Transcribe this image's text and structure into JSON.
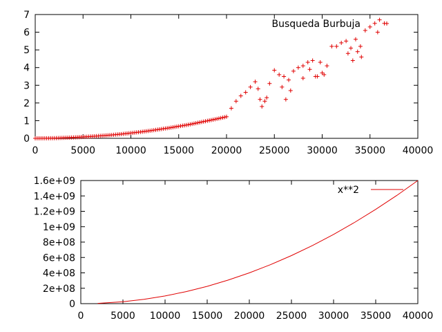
{
  "chart_data": [
    {
      "type": "scatter",
      "title": "",
      "xlabel": "",
      "ylabel": "",
      "legend_position": "top-right",
      "grid": false,
      "xlim": [
        0,
        40000
      ],
      "ylim": [
        0,
        7
      ],
      "x_ticks": [
        0,
        5000,
        10000,
        15000,
        20000,
        25000,
        30000,
        35000,
        40000
      ],
      "y_ticks": [
        0,
        1,
        2,
        3,
        4,
        5,
        6,
        7
      ],
      "x_tick_labels": [
        "0",
        "5000",
        "10000",
        "15000",
        "20000",
        "25000",
        "30000",
        "35000",
        "40000"
      ],
      "y_tick_labels": [
        "0",
        "1",
        "2",
        "3",
        "4",
        "5",
        "6",
        "7"
      ],
      "series": [
        {
          "name": "Busqueda Burbuja",
          "color": "#e00000",
          "marker": "plus",
          "x": [
            0,
            1000,
            2000,
            3000,
            4000,
            5000,
            6000,
            7000,
            8000,
            9000,
            10000,
            11000,
            12000,
            13000,
            14000,
            15000,
            16000,
            17000,
            18000,
            19000,
            20000,
            20500,
            21000,
            21500,
            22000,
            22500,
            23000,
            23500,
            24000,
            24500,
            25000,
            25500,
            26000,
            26500,
            27000,
            27500,
            28000,
            28500,
            29000,
            29500,
            30000,
            30500,
            31000,
            31500,
            32000,
            32500,
            33000,
            33500,
            34000,
            34500,
            35000,
            35500,
            36000,
            36500,
            23300,
            23700,
            24200,
            25800,
            26200,
            26700,
            28000,
            28700,
            29300,
            29800,
            30200,
            32700,
            33200,
            33700,
            34100,
            35800
          ],
          "y": [
            0.0,
            0.003,
            0.01,
            0.03,
            0.05,
            0.08,
            0.11,
            0.15,
            0.19,
            0.24,
            0.3,
            0.36,
            0.43,
            0.51,
            0.59,
            0.68,
            0.77,
            0.88,
            0.99,
            1.1,
            1.22,
            1.7,
            2.1,
            2.4,
            2.6,
            2.9,
            3.2,
            2.2,
            2.1,
            3.1,
            3.85,
            3.6,
            3.5,
            3.3,
            3.8,
            4.0,
            4.1,
            4.3,
            4.4,
            3.5,
            3.7,
            4.1,
            5.2,
            5.2,
            5.4,
            5.5,
            5.1,
            5.6,
            5.2,
            6.1,
            6.3,
            6.5,
            6.7,
            6.5,
            2.8,
            1.8,
            2.3,
            2.9,
            2.2,
            2.7,
            3.4,
            3.9,
            3.5,
            4.3,
            3.6,
            4.8,
            4.4,
            4.9,
            4.6,
            6.0
          ]
        }
      ]
    },
    {
      "type": "line",
      "title": "",
      "xlabel": "",
      "ylabel": "",
      "legend_position": "top-right",
      "grid": false,
      "xlim": [
        0,
        40000
      ],
      "ylim": [
        0,
        1600000000
      ],
      "x_ticks": [
        0,
        5000,
        10000,
        15000,
        20000,
        25000,
        30000,
        35000,
        40000
      ],
      "y_ticks": [
        0,
        200000000,
        400000000,
        600000000,
        800000000,
        1000000000,
        1200000000,
        1400000000,
        1600000000
      ],
      "x_tick_labels": [
        "0",
        "5000",
        "10000",
        "15000",
        "20000",
        "25000",
        "30000",
        "35000",
        "40000"
      ],
      "y_tick_labels": [
        "0",
        "2e+08",
        "4e+08",
        "6e+08",
        "8e+08",
        "1e+09",
        "1.2e+09",
        "1.4e+09",
        "1.6e+09"
      ],
      "series": [
        {
          "name": "x**2",
          "color": "#e00000",
          "x": [
            2000,
            5000,
            7500,
            10000,
            12500,
            15000,
            17500,
            20000,
            22500,
            25000,
            27500,
            30000,
            32500,
            35000,
            37500,
            40000
          ],
          "y": [
            4000000,
            25000000,
            56250000,
            100000000,
            156250000,
            225000000,
            306250000,
            400000000,
            506250000,
            625000000,
            756250000,
            900000000,
            1056250000,
            1225000000,
            1406250000,
            1600000000
          ]
        }
      ]
    }
  ]
}
